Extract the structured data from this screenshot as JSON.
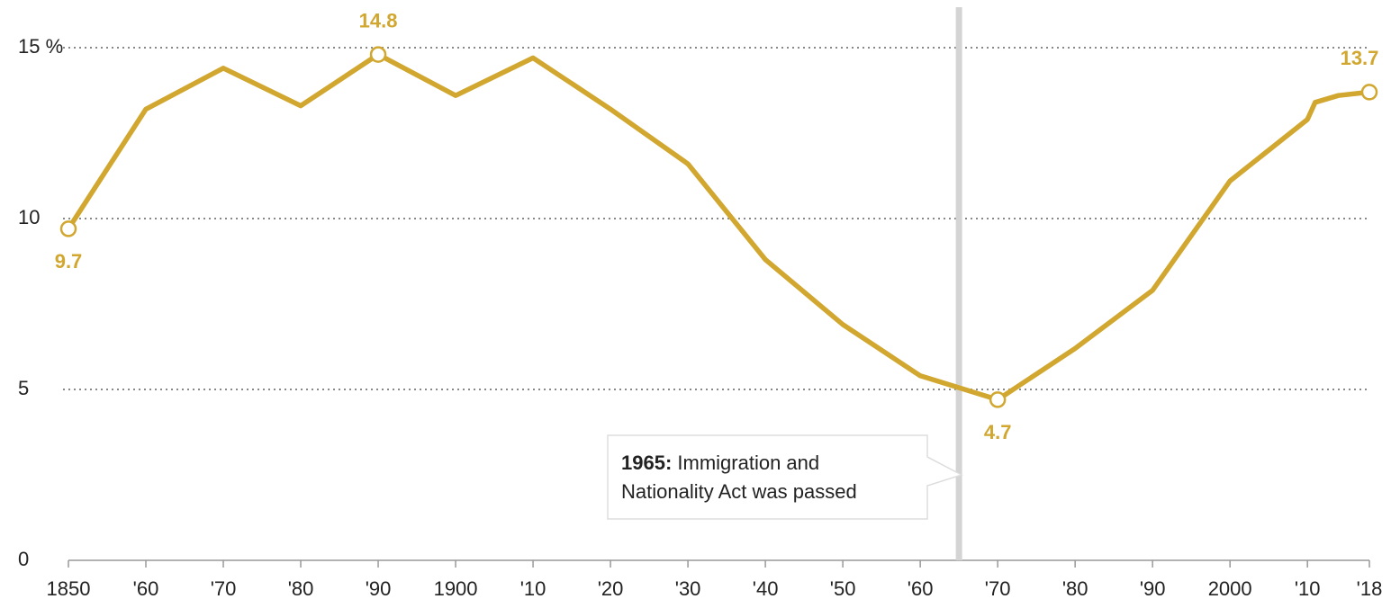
{
  "chart_data": {
    "type": "line",
    "x": [
      1850,
      1860,
      1870,
      1880,
      1890,
      1900,
      1910,
      1920,
      1930,
      1940,
      1950,
      1960,
      1970,
      1980,
      1990,
      2000,
      2010,
      2011,
      2014,
      2018
    ],
    "series": [
      {
        "color": "#d1a730",
        "values": [
          9.7,
          13.2,
          14.4,
          13.3,
          14.8,
          13.6,
          14.7,
          13.2,
          11.6,
          8.8,
          6.9,
          5.4,
          4.7,
          6.2,
          7.9,
          11.1,
          12.9,
          13.4,
          13.6,
          13.7
        ],
        "value_labels": [
          "9.7",
          null,
          null,
          null,
          "14.8",
          null,
          null,
          null,
          null,
          null,
          null,
          null,
          "4.7",
          null,
          null,
          null,
          null,
          null,
          null,
          "13.7"
        ]
      }
    ],
    "xlim": [
      1850,
      2018
    ],
    "xticks": [
      1850,
      {
        "value": 1860,
        "label": "'60"
      },
      {
        "value": 1870,
        "label": "'70"
      },
      {
        "value": 1880,
        "label": "'80"
      },
      {
        "value": 1890,
        "label": "'90"
      },
      1900,
      {
        "value": 1910,
        "label": "'10"
      },
      {
        "value": 1920,
        "label": "'20"
      },
      {
        "value": 1930,
        "label": "'30"
      },
      {
        "value": 1940,
        "label": "'40"
      },
      {
        "value": 1950,
        "label": "'50"
      },
      {
        "value": 1960,
        "label": "'60"
      },
      {
        "value": 1970,
        "label": "'70"
      },
      {
        "value": 1980,
        "label": "'80"
      },
      {
        "value": 1990,
        "label": "'90"
      },
      2000,
      {
        "value": 2010,
        "label": "'10"
      },
      {
        "value": 2018,
        "label": "'18"
      }
    ],
    "ylim": [
      0,
      15
    ],
    "yticks": [
      0,
      5,
      10,
      {
        "value": 15,
        "label": "15 %"
      }
    ],
    "grid": true,
    "annotation": {
      "x": 1965,
      "bold": "1965:",
      "lines": [
        " Immigration and",
        "Nationality Act was passed"
      ]
    }
  }
}
